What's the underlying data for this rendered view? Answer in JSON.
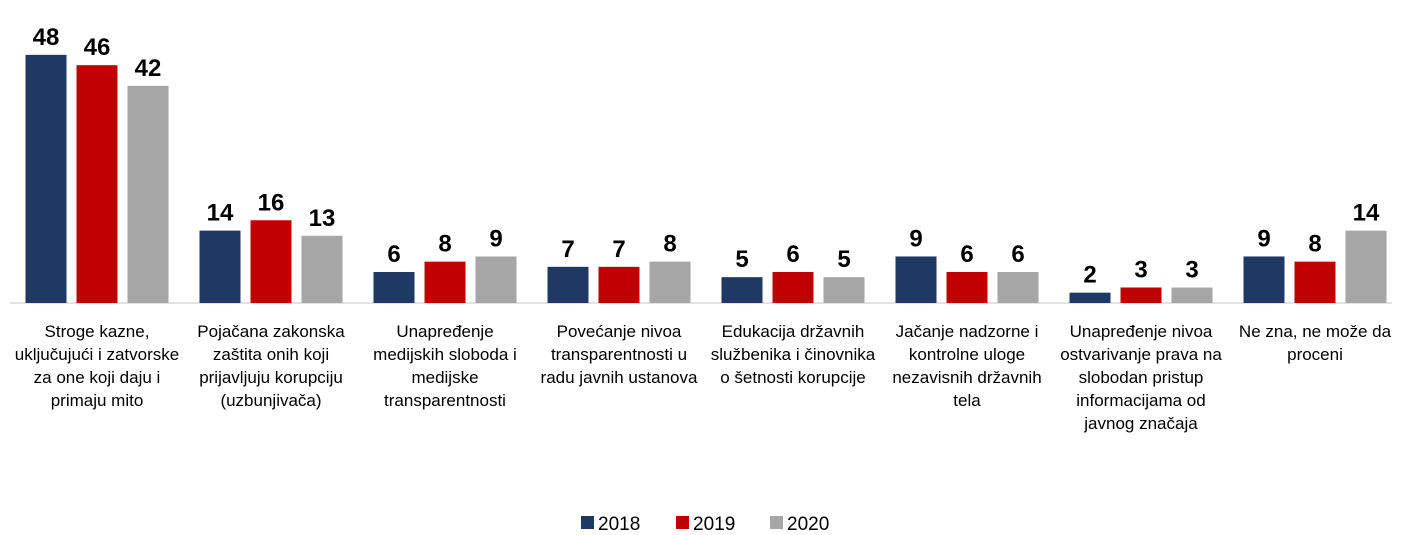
{
  "chart_data": {
    "type": "bar",
    "categories": [
      "Stroge kazne, uključujući i zatvorske za one koji daju i primaju mito",
      "Pojačana zakonska zaštita onih koji prijavljuju korupciju (uzbunjivača)",
      "Unapređenje medijskih sloboda i medijske transparentnosti",
      "Povećanje nivoa transparentnosti u radu javnih ustanova",
      "Edukacija državnih službenika i činovnika o šetnosti korupcije",
      "Jačanje nadzorne i kontrolne uloge nezavisnih državnih tela",
      "Unapređenje nivoa ostvarivanje prava na slobodan pristup informacijama od javnog značaja",
      "Ne zna, ne može da proceni"
    ],
    "series": [
      {
        "name": "2018",
        "color": "#1f3864",
        "values": [
          48,
          14,
          6,
          7,
          5,
          9,
          2,
          9
        ]
      },
      {
        "name": "2019",
        "color": "#c00000",
        "values": [
          46,
          16,
          8,
          7,
          6,
          6,
          3,
          8
        ]
      },
      {
        "name": "2020",
        "color": "#a6a6a6",
        "values": [
          42,
          13,
          9,
          8,
          5,
          6,
          3,
          14
        ]
      }
    ],
    "ylim": [
      0,
      50
    ],
    "legend": "bottom"
  }
}
